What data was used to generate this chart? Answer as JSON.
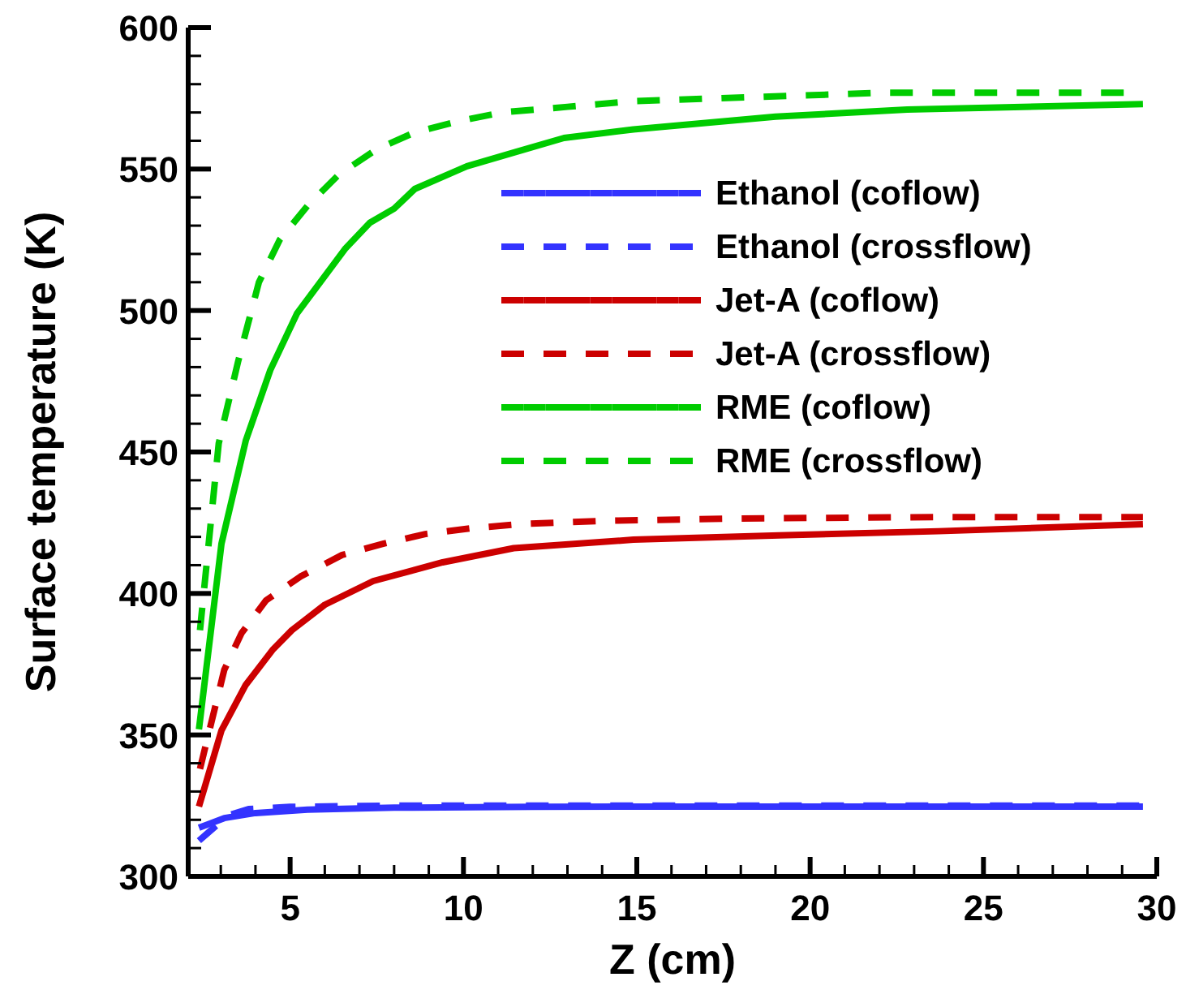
{
  "chart_data": {
    "type": "line",
    "xlabel": "Z (cm)",
    "ylabel": "Surface temperature (K)",
    "xlim": [
      2.06,
      30
    ],
    "ylim": [
      300,
      600
    ],
    "xticks": [
      {
        "value": 3,
        "label": null
      },
      {
        "value": 4,
        "label": null
      },
      5,
      {
        "value": 6,
        "label": null
      },
      {
        "value": 7,
        "label": null
      },
      {
        "value": 8,
        "label": null
      },
      {
        "value": 9,
        "label": null
      },
      10,
      {
        "value": 11,
        "label": null
      },
      {
        "value": 12,
        "label": null
      },
      {
        "value": 13,
        "label": null
      },
      {
        "value": 14,
        "label": null
      },
      15,
      {
        "value": 16,
        "label": null
      },
      {
        "value": 17,
        "label": null
      },
      {
        "value": 18,
        "label": null
      },
      {
        "value": 19,
        "label": null
      },
      20,
      {
        "value": 21,
        "label": null
      },
      {
        "value": 22,
        "label": null
      },
      {
        "value": 23,
        "label": null
      },
      {
        "value": 24,
        "label": null
      },
      25,
      {
        "value": 26,
        "label": null
      },
      {
        "value": 27,
        "label": null
      },
      {
        "value": 28,
        "label": null
      },
      {
        "value": 29,
        "label": null
      },
      30
    ],
    "yticks": [
      300,
      {
        "value": 310,
        "label": null
      },
      {
        "value": 320,
        "label": null
      },
      {
        "value": 330,
        "label": null
      },
      {
        "value": 340,
        "label": null
      },
      350,
      {
        "value": 360,
        "label": null
      },
      {
        "value": 370,
        "label": null
      },
      {
        "value": 380,
        "label": null
      },
      {
        "value": 390,
        "label": null
      },
      400,
      {
        "value": 410,
        "label": null
      },
      {
        "value": 420,
        "label": null
      },
      {
        "value": 430,
        "label": null
      },
      {
        "value": 440,
        "label": null
      },
      450,
      {
        "value": 460,
        "label": null
      },
      {
        "value": 470,
        "label": null
      },
      {
        "value": 480,
        "label": null
      },
      {
        "value": 490,
        "label": null
      },
      500,
      {
        "value": 510,
        "label": null
      },
      {
        "value": 520,
        "label": null
      },
      {
        "value": 530,
        "label": null
      },
      {
        "value": 540,
        "label": null
      },
      550,
      {
        "value": 560,
        "label": null
      },
      {
        "value": 570,
        "label": null
      },
      {
        "value": 580,
        "label": null
      },
      {
        "value": 590,
        "label": null
      },
      600
    ],
    "legend": "top right",
    "marker": "none",
    "series": [
      {
        "name": "Ethanol (coflow)",
        "color": "#3333ff",
        "line_style": "solid",
        "x": [
          2.37,
          3.1,
          4.0,
          5.5,
          8,
          12,
          16,
          20,
          25,
          29.6
        ],
        "values": [
          317.2,
          320.6,
          322.4,
          323.6,
          324.3,
          324.6,
          324.7,
          324.7,
          324.7,
          324.7
        ]
      },
      {
        "name": "Ethanol (crossflow)",
        "color": "#3333ff",
        "line_style": "dashed",
        "x": [
          2.37,
          3.2,
          3.8,
          5,
          8,
          12,
          16,
          20,
          25,
          29.6
        ],
        "values": [
          312.6,
          321.5,
          323.8,
          324.6,
          325,
          325,
          325,
          325,
          325,
          325
        ]
      },
      {
        "name": "Jet-A (coflow)",
        "color": "#cc0000",
        "line_style": "solid",
        "x": [
          2.37,
          3.02,
          3.72,
          4.49,
          5.05,
          6,
          7.4,
          9.4,
          11.45,
          14.9,
          19.1,
          23.7,
          29.6
        ],
        "values": [
          324.7,
          351.6,
          367.7,
          380,
          387,
          396,
          404.4,
          411,
          416,
          419,
          420.5,
          422,
          424.5
        ]
      },
      {
        "name": "Jet-A (crossflow)",
        "color": "#cc0000",
        "line_style": "dashed",
        "x": [
          2.4,
          3.1,
          3.6,
          4.3,
          5.3,
          6.5,
          7.7,
          8.9,
          10.2,
          11.6,
          14.1,
          18,
          23.7,
          29.6
        ],
        "values": [
          338,
          373,
          386,
          397.5,
          406,
          413.6,
          417.6,
          421,
          423,
          424.5,
          425.7,
          426.5,
          427,
          427
        ]
      },
      {
        "name": "RME (coflow)",
        "color": "#00cc00",
        "line_style": "solid",
        "x": [
          2.37,
          3.02,
          3.72,
          4.43,
          5.2,
          6.6,
          7.3,
          8,
          8.6,
          10.1,
          11.5,
          12.9,
          14.9,
          19,
          22.8,
          29.6
        ],
        "values": [
          352,
          417.6,
          454,
          479,
          499,
          522,
          531,
          536,
          543,
          551,
          556,
          561,
          564,
          568.5,
          571,
          573
        ]
      },
      {
        "name": "RME (crossflow)",
        "color": "#00cc00",
        "line_style": "dashed",
        "x": [
          2.4,
          2.94,
          3.5,
          4.1,
          4.7,
          5.5,
          6.4,
          7.5,
          8.6,
          9.9,
          11.1,
          13,
          14.9,
          22.2,
          29.6
        ],
        "values": [
          387,
          453,
          482,
          510,
          525,
          537,
          548,
          557,
          563,
          567,
          570,
          572,
          574,
          577,
          577
        ]
      }
    ]
  }
}
